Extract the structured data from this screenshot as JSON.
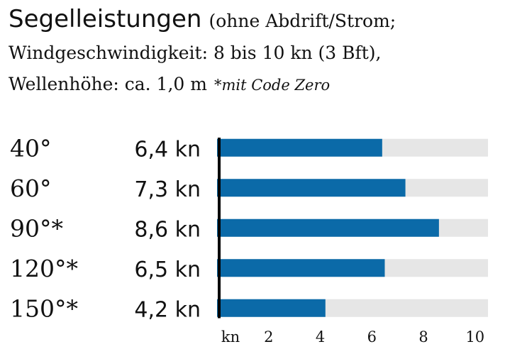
{
  "chart_data": {
    "type": "hbar",
    "title": "Segelleistungen",
    "subtitle_lines": [
      "(ohne Abdrift/Strom;",
      "Windgeschwindigkeit: 8 bis 10 kn (3 Bft),",
      "Wellenhöhe: ca. 1,0 m"
    ],
    "note": "*mit Code Zero",
    "categories": [
      "40°",
      "60°",
      "90°*",
      "120°*",
      "150°*"
    ],
    "values": [
      6.4,
      7.3,
      8.6,
      6.5,
      4.2
    ],
    "value_labels": [
      "6,4 kn",
      "7,3 kn",
      "8,6 kn",
      "6,5 kn",
      "4,2 kn"
    ],
    "color": "#0b6aa8",
    "track_color": "#e6e6e6",
    "x_label": "kn",
    "xlim": [
      0,
      10.5
    ],
    "xticks": [
      2,
      4,
      6,
      8,
      10
    ]
  }
}
